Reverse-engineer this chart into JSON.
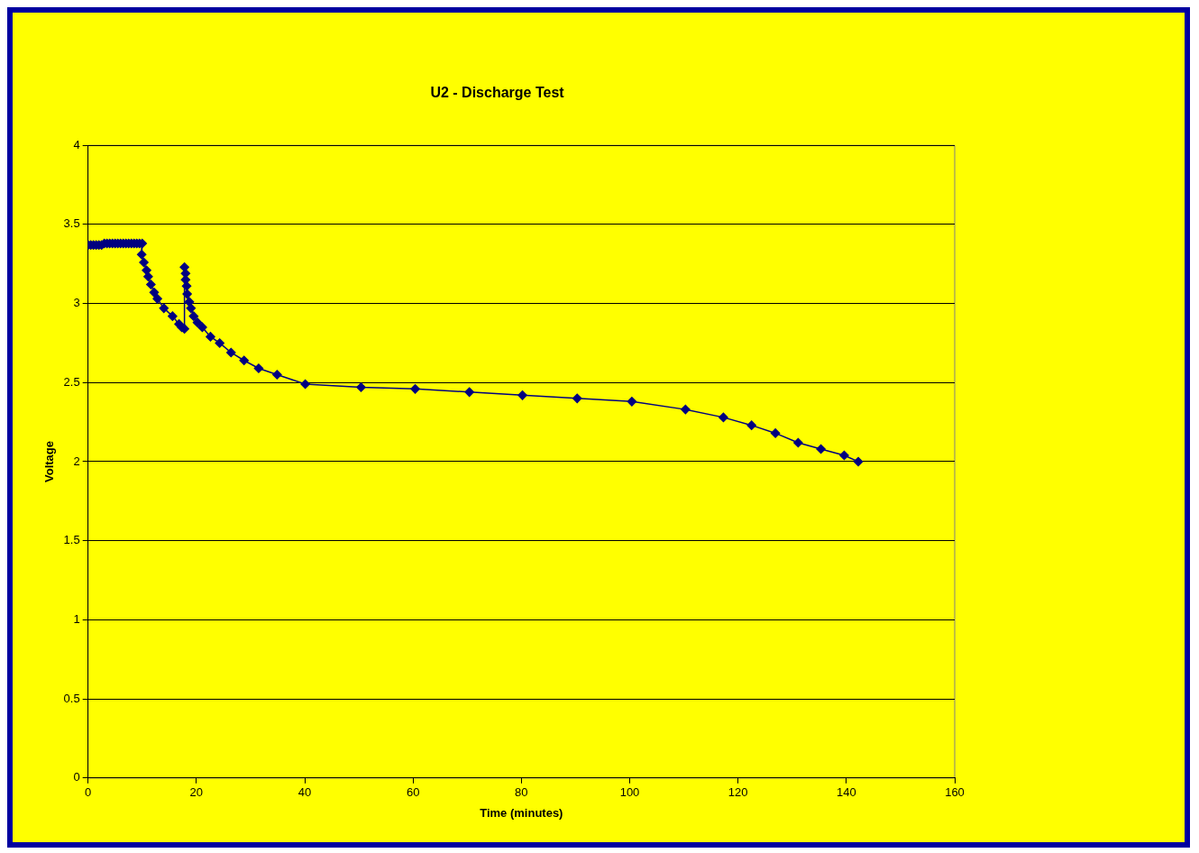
{
  "chart_data": {
    "type": "line",
    "title": "U2 - Discharge Test",
    "xlabel": "Time (minutes)",
    "ylabel": "Voltage",
    "series": [
      {
        "color": "#000080",
        "x": [
          0,
          0.5,
          1,
          1.5,
          2,
          2.5,
          3,
          3.5,
          4,
          4.5,
          5,
          5.5,
          6,
          6.5,
          7,
          7.5,
          8,
          8.5,
          9,
          9.5,
          10,
          9.9,
          10.3,
          10.8,
          11.1,
          11.6,
          12.2,
          12.8,
          14,
          15.6,
          16.8,
          17.3,
          17.8,
          17.8,
          18,
          18,
          18.2,
          18.3,
          18.7,
          19,
          19.5,
          20.2,
          21.1,
          22.6,
          24.3,
          26.4,
          28.8,
          31.5,
          34.9,
          40.1,
          50.4,
          60.4,
          70.4,
          80.2,
          90.3,
          100.4,
          110.3,
          117.3,
          122.5,
          126.9,
          131.1,
          135.3,
          139.6,
          142.2
        ],
        "values": [
          3.37,
          3.37,
          3.37,
          3.37,
          3.37,
          3.37,
          3.38,
          3.38,
          3.38,
          3.38,
          3.38,
          3.38,
          3.38,
          3.38,
          3.38,
          3.38,
          3.38,
          3.38,
          3.38,
          3.38,
          3.38,
          3.31,
          3.26,
          3.21,
          3.17,
          3.12,
          3.07,
          3.03,
          2.97,
          2.92,
          2.87,
          2.85,
          2.84,
          3.23,
          3.19,
          3.15,
          3.11,
          3.06,
          3.01,
          2.97,
          2.92,
          2.88,
          2.85,
          2.79,
          2.75,
          2.69,
          2.64,
          2.59,
          2.55,
          2.49,
          2.47,
          2.46,
          2.44,
          2.42,
          2.4,
          2.38,
          2.33,
          2.28,
          2.23,
          2.18,
          2.12,
          2.08,
          2.04,
          2.0
        ]
      }
    ],
    "xlim": [
      0,
      160
    ],
    "xticks": [
      0,
      20,
      40,
      60,
      80,
      100,
      120,
      140,
      160
    ],
    "ylim": [
      0,
      4
    ],
    "yticks": [
      0,
      0.5,
      1,
      1.5,
      2,
      2.5,
      3,
      3.5,
      4
    ],
    "grid": "y",
    "legend": false,
    "marker": "diamond",
    "line_style": "solid"
  }
}
